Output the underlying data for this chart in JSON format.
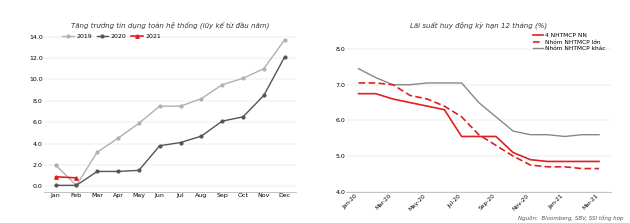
{
  "chart1_title": "Tăng trưởng tín dụng toàn hệ thống (lũy kế từ đầu năm)",
  "chart1_months": [
    "Jan",
    "Feb",
    "Mar",
    "Apr",
    "May",
    "Jun",
    "Jul",
    "Aug",
    "Sep",
    "Oct",
    "Nov",
    "Dec"
  ],
  "chart1_2019": [
    2.0,
    0.1,
    3.2,
    4.5,
    5.9,
    7.5,
    7.5,
    8.2,
    9.5,
    10.1,
    11.0,
    13.7
  ],
  "chart1_2020": [
    0.1,
    0.1,
    1.4,
    1.4,
    1.5,
    3.8,
    4.1,
    4.7,
    6.1,
    6.5,
    8.5,
    12.1
  ],
  "chart1_2021": [
    0.9,
    0.8
  ],
  "chart1_ylim": [
    -0.5,
    14.5
  ],
  "chart1_yticks": [
    0.0,
    2.0,
    4.0,
    6.0,
    8.0,
    10.0,
    12.0,
    14.0
  ],
  "chart1_color_2019": "#b0b0b0",
  "chart1_color_2020": "#555555",
  "chart1_color_2021": "#e02020",
  "chart2_title": "Lãi suất huy động kỳ hạn 12 tháng (%)",
  "chart2_dates": [
    "Jan-20",
    "Feb-20",
    "Mar-20",
    "Apr-20",
    "May-20",
    "Jun-20",
    "Jul-20",
    "Aug-20",
    "Sep-20",
    "Oct-20",
    "Nov-20",
    "Dec-20",
    "Jan-21",
    "Feb-21",
    "Mar-21"
  ],
  "chart2_nn": [
    6.75,
    6.75,
    6.6,
    6.5,
    6.4,
    6.3,
    5.55,
    5.55,
    5.55,
    5.1,
    4.9,
    4.85,
    4.85,
    4.85,
    4.85
  ],
  "chart2_lon": [
    7.05,
    7.05,
    7.0,
    6.7,
    6.6,
    6.4,
    6.1,
    5.6,
    5.3,
    5.0,
    4.75,
    4.7,
    4.7,
    4.65,
    4.65
  ],
  "chart2_khac": [
    7.45,
    7.2,
    7.0,
    7.0,
    7.05,
    7.05,
    7.05,
    6.5,
    6.1,
    5.7,
    5.6,
    5.6,
    5.55,
    5.6,
    5.6
  ],
  "chart2_ylim": [
    4.0,
    8.5
  ],
  "chart2_yticks": [
    4.0,
    5.0,
    6.0,
    7.0,
    8.0
  ],
  "chart2_color_nn": "#e02020",
  "chart2_color_lon": "#e02020",
  "chart2_color_khac": "#888888",
  "chart2_xtick_indices": [
    0,
    2,
    4,
    6,
    8,
    10,
    12,
    14
  ],
  "chart2_xtick_labels": [
    "Jan-20",
    "Mar-20",
    "May-20",
    "Jul-20",
    "Sep-20",
    "Nov-20",
    "Jan-21",
    "Mar-21"
  ],
  "source_text": "Nguồn:  Bloomberg, SBV, SSI tổng hợp"
}
